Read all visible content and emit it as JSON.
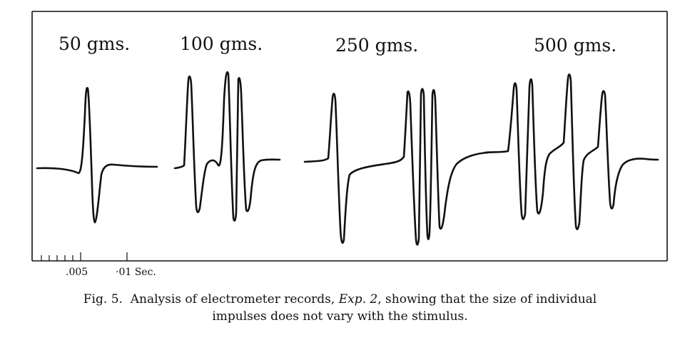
{
  "figure": {
    "labels": [
      "50 gms.",
      "100 gms.",
      "250 gms.",
      "500 gms."
    ],
    "time_ticks": [
      ".005",
      "·01 Sec."
    ]
  },
  "caption": {
    "prefix": "Fig. 5.",
    "part1": "Analysis of electrometer records,",
    "exp": "Exp. 2",
    "part2": ", showing that the size of individual",
    "line2": "impulses does not vary with the stimulus."
  }
}
